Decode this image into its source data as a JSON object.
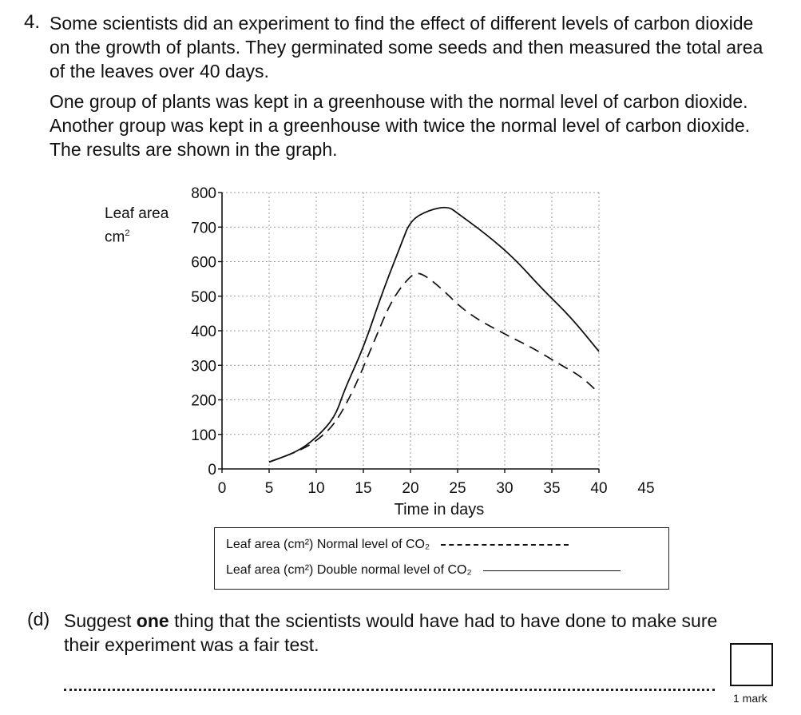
{
  "question": {
    "number": "4.",
    "paragraph_1": "Some scientists did an experiment to find the effect of different levels of carbon dioxide on the growth of plants. They germinated some seeds and then measured the total area of the leaves over 40 days.",
    "paragraph_2": "One group of plants was kept in a greenhouse with the normal level of carbon dioxide. Another group was kept in a greenhouse with twice the normal level of carbon dioxide. The results are shown in the graph."
  },
  "chart_data": {
    "type": "line",
    "ylabel_line1": "Leaf area",
    "ylabel_line2": "cm",
    "ylabel_sup": "2",
    "xlabel": "Time in days",
    "xlim": [
      0,
      45
    ],
    "ylim": [
      0,
      800
    ],
    "x_ticks": [
      "0",
      "5",
      "10",
      "15",
      "20",
      "25",
      "30",
      "35",
      "40",
      "45"
    ],
    "y_ticks": [
      "0",
      "100",
      "200",
      "300",
      "400",
      "500",
      "600",
      "700",
      "800"
    ],
    "grid": true,
    "series": [
      {
        "style": "dashed",
        "x": [
          5,
          8,
          10,
          12,
          14,
          16,
          18,
          20,
          21,
          23,
          26,
          30,
          33,
          36,
          38,
          40
        ],
        "y": [
          20,
          50,
          80,
          130,
          230,
          360,
          490,
          560,
          570,
          530,
          450,
          390,
          350,
          300,
          270,
          220
        ]
      },
      {
        "style": "solid",
        "x": [
          5,
          8,
          10,
          12,
          13,
          15,
          17,
          19,
          20,
          22,
          24,
          25,
          28,
          31,
          34,
          37,
          40
        ],
        "y": [
          20,
          50,
          90,
          150,
          230,
          350,
          510,
          650,
          720,
          750,
          760,
          740,
          680,
          610,
          520,
          440,
          340
        ]
      }
    ]
  },
  "legend": {
    "normal": "Leaf area (cm²) Normal level of CO₂",
    "double": "Leaf area (cm²) Double normal level of CO₂"
  },
  "part_d": {
    "label": "(d)",
    "text_before": "Suggest ",
    "text_bold": "one",
    "text_after": " thing that the scientists would have had to have done to make sure their experiment was a fair test."
  },
  "mark": {
    "label": "1 mark"
  }
}
